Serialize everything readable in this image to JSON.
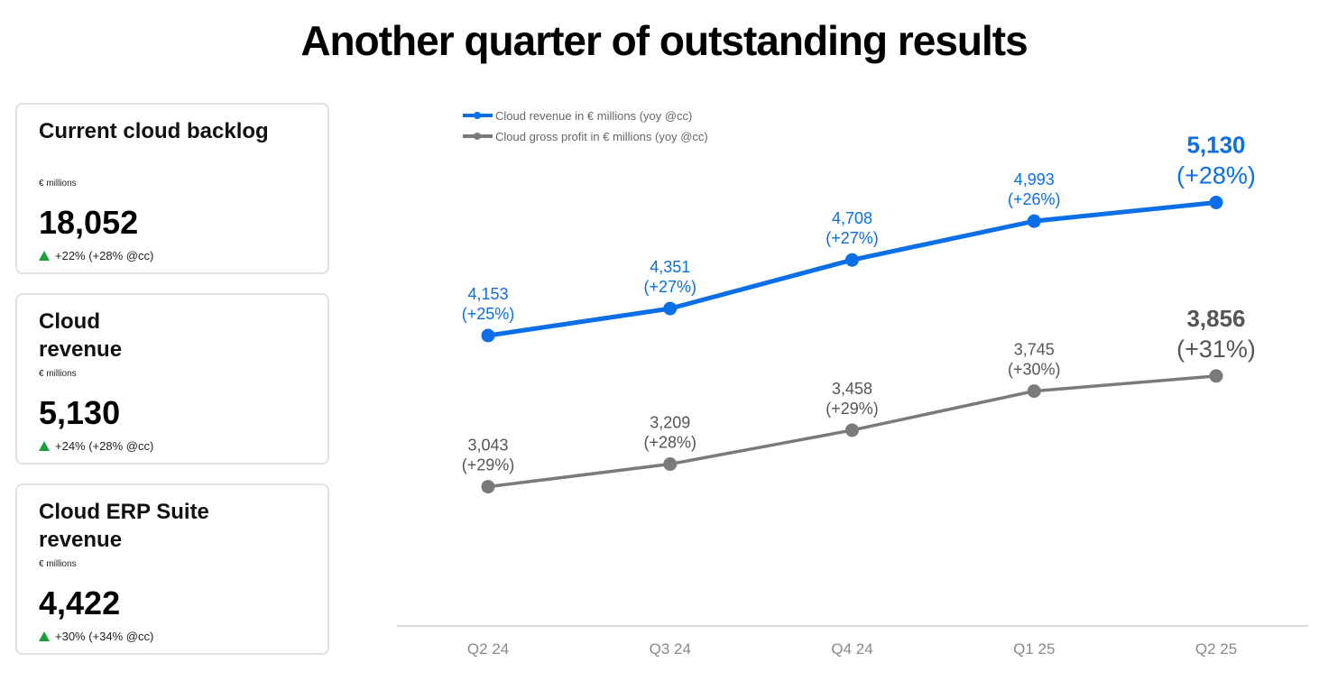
{
  "title": "Another quarter of outstanding results",
  "kpis": [
    {
      "title": "Current cloud backlog",
      "unit": "€ millions",
      "value": "18,052",
      "change": "+22% (+28% @cc)"
    },
    {
      "title": "Cloud revenue",
      "unit": "€ millions",
      "value": "5,130",
      "change": "+24% (+28% @cc)"
    },
    {
      "title": "Cloud ERP Suite revenue",
      "unit": "€ millions",
      "value": "4,422",
      "change": "+30% (+34% @cc)"
    }
  ],
  "colors": {
    "revenue": "#0a6ee6",
    "gross_profit": "#7a7a7a",
    "up_arrow": "#1aa03a"
  },
  "chart_data": {
    "type": "line",
    "title": "",
    "xlabel": "",
    "ylabel": "",
    "categories": [
      "Q2 24",
      "Q3 24",
      "Q4 24",
      "Q1 25",
      "Q2 25"
    ],
    "legend_position": "top-left",
    "grid": false,
    "series": [
      {
        "name": "Cloud revenue in € millions (yoy @cc)",
        "color": "#0a6ee6",
        "values": [
          4153,
          4351,
          4708,
          4993,
          5130
        ],
        "value_labels": [
          "4,153",
          "4,351",
          "4,708",
          "4,993",
          "5,130"
        ],
        "growth_labels": [
          "(+25%)",
          "(+27%)",
          "(+27%)",
          "(+26%)",
          "(+28%)"
        ]
      },
      {
        "name": "Cloud gross profit in € millions (yoy @cc)",
        "color": "#7a7a7a",
        "values": [
          3043,
          3209,
          3458,
          3745,
          3856
        ],
        "value_labels": [
          "3,043",
          "3,209",
          "3,458",
          "3,745",
          "3,856"
        ],
        "growth_labels": [
          "(+29%)",
          "(+28%)",
          "(+29%)",
          "(+30%)",
          "(+31%)"
        ]
      }
    ]
  }
}
